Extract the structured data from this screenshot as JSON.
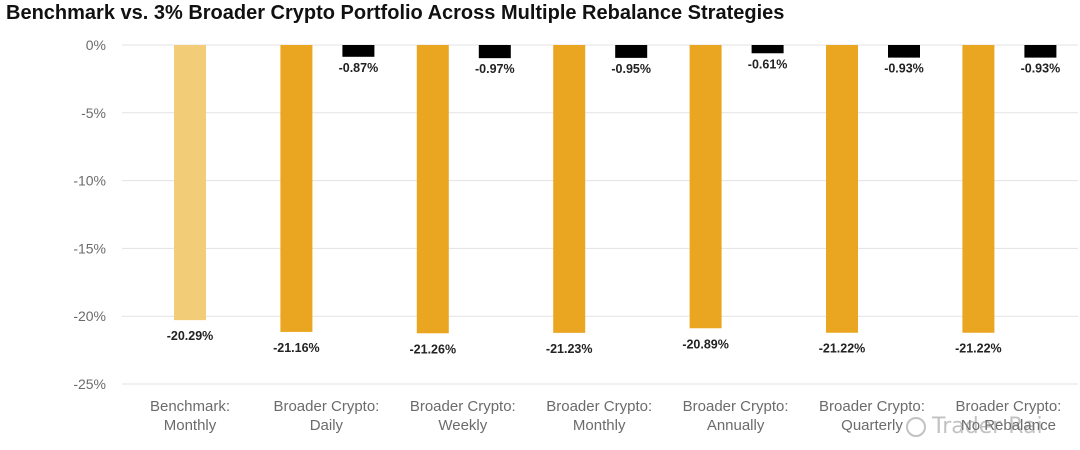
{
  "chart_data": {
    "type": "bar",
    "title": "Benchmark vs. 3% Broader Crypto Portfolio Across Multiple Rebalance Strategies",
    "xlabel": "",
    "ylabel": "",
    "ylim": [
      -25,
      0
    ],
    "yticks": [
      "0%",
      "-5%",
      "-10%",
      "-15%",
      "-20%",
      "-25%"
    ],
    "ytick_values": [
      0,
      -5,
      -10,
      -15,
      -20,
      -25
    ],
    "grid": true,
    "legend": "none",
    "categories": [
      [
        "Benchmark:",
        "Monthly"
      ],
      [
        "Broader Crypto:",
        "Daily"
      ],
      [
        "Broader Crypto:",
        "Weekly"
      ],
      [
        "Broader Crypto:",
        "Monthly"
      ],
      [
        "Broader Crypto:",
        "Annually"
      ],
      [
        "Broader Crypto:",
        "Quarterly"
      ],
      [
        "Broader Crypto:",
        "No Rebalance"
      ]
    ],
    "series": [
      {
        "values": [
          -20.29,
          -21.16,
          -21.26,
          -21.23,
          -20.89,
          -21.22,
          -21.22
        ],
        "labels": [
          "-20.29%",
          "-21.16%",
          "-21.26%",
          "-21.23%",
          "-20.89%",
          "-21.22%",
          "-21.22%"
        ],
        "colors": [
          "#f3cc78",
          "#eaa621",
          "#eaa621",
          "#eaa621",
          "#eaa621",
          "#eaa621",
          "#eaa621"
        ]
      },
      {
        "values": [
          null,
          -0.87,
          -0.97,
          -0.95,
          -0.61,
          -0.93,
          -0.93
        ],
        "labels": [
          null,
          "-0.87%",
          "-0.97%",
          "-0.95%",
          "-0.61%",
          "-0.93%",
          "-0.93%"
        ],
        "color": "#000000"
      }
    ]
  },
  "watermark": "Trader Rai"
}
